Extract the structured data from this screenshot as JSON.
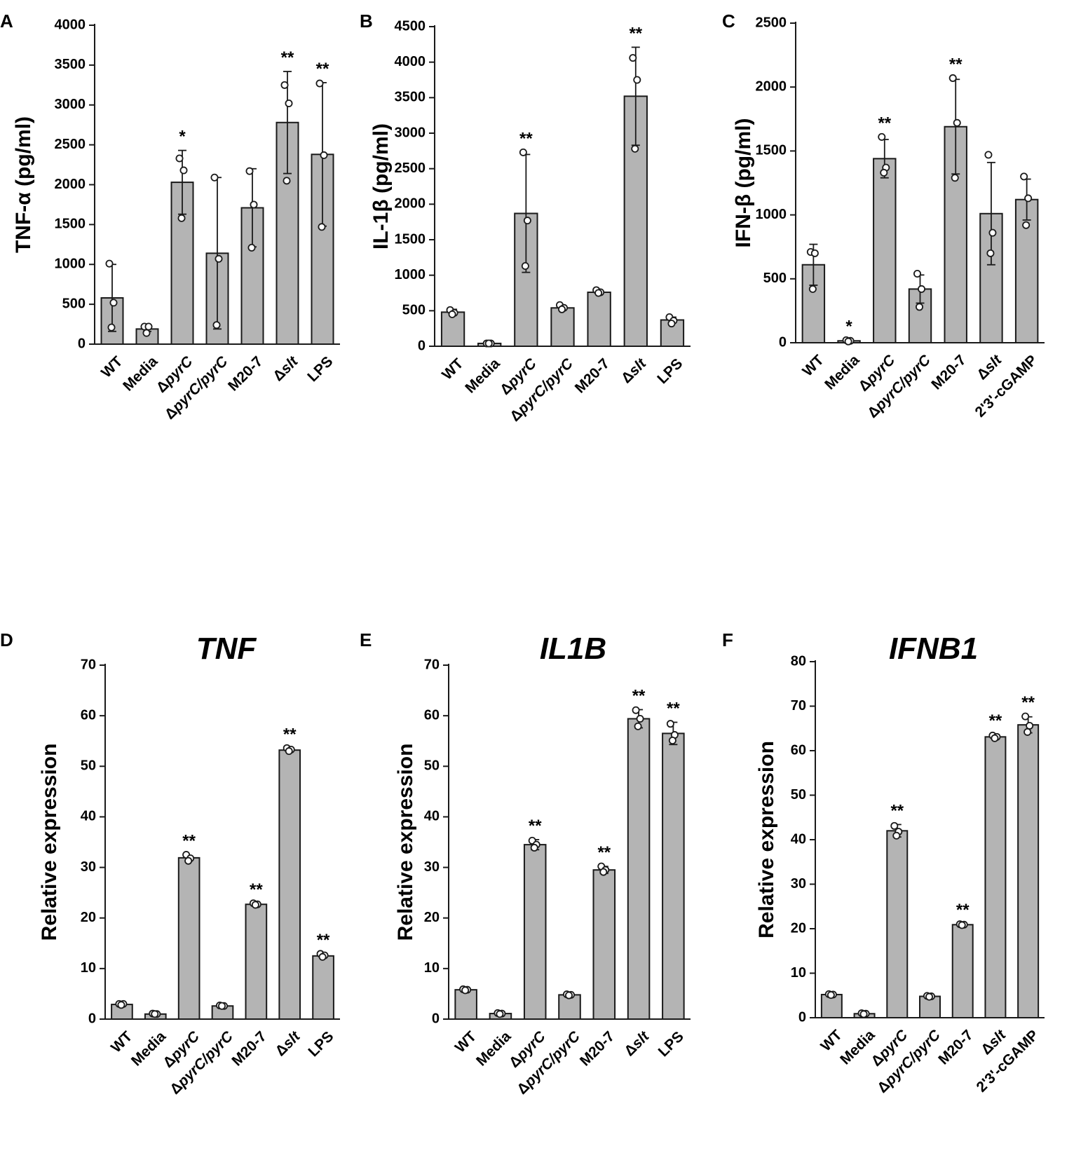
{
  "colors": {
    "bar": "#b4b4b4",
    "stroke": "#1a1a1a",
    "point_fill": "#ffffff"
  },
  "chart_data": [
    {
      "panel": "A",
      "type": "bar",
      "title": "",
      "ylabel": "TNF-α (pg/ml)",
      "ylim": [
        0,
        4000
      ],
      "yticks": [
        0,
        500,
        1000,
        1500,
        2000,
        2500,
        3000,
        3500,
        4000
      ],
      "categories": [
        {
          "label": "WT"
        },
        {
          "label": "Media"
        },
        {
          "label": "pyrC",
          "prefix": "Δ",
          "italic": true
        },
        {
          "label": "pyrC/pyrC",
          "prefix": "Δ",
          "italic": true
        },
        {
          "label": "M20-7"
        },
        {
          "label": "slt",
          "prefix": "Δ",
          "italic": true
        },
        {
          "label": "LPS"
        }
      ],
      "values": [
        580,
        190,
        2030,
        1140,
        1710,
        2780,
        2380
      ],
      "errors": [
        420,
        30,
        400,
        950,
        490,
        640,
        900
      ],
      "points": [
        [
          1010,
          520,
          210
        ],
        [
          220,
          220,
          140
        ],
        [
          2330,
          2180,
          1580
        ],
        [
          2090,
          1070,
          240
        ],
        [
          2170,
          1750,
          1210
        ],
        [
          3250,
          3020,
          2050
        ],
        [
          3270,
          2370,
          1470
        ]
      ],
      "significance": [
        "",
        "",
        "*",
        "",
        "",
        "**",
        "**"
      ]
    },
    {
      "panel": "B",
      "type": "bar",
      "title": "",
      "ylabel": "IL-1β (pg/ml)",
      "ylim": [
        0,
        4500
      ],
      "yticks": [
        0,
        500,
        1000,
        1500,
        2000,
        2500,
        3000,
        3500,
        4000,
        4500
      ],
      "categories": [
        {
          "label": "WT"
        },
        {
          "label": "Media"
        },
        {
          "label": "pyrC",
          "prefix": "Δ",
          "italic": true
        },
        {
          "label": "pyrC/pyrC",
          "prefix": "Δ",
          "italic": true
        },
        {
          "label": "M20-7"
        },
        {
          "label": "slt",
          "prefix": "Δ",
          "italic": true
        },
        {
          "label": "LPS"
        }
      ],
      "values": [
        480,
        40,
        1870,
        540,
        760,
        3520,
        370
      ],
      "errors": [
        40,
        10,
        830,
        30,
        20,
        690,
        40
      ],
      "points": [
        [
          510,
          470,
          450
        ],
        [
          40,
          40,
          40
        ],
        [
          2730,
          1770,
          1130
        ],
        [
          580,
          540,
          520
        ],
        [
          790,
          760,
          750
        ],
        [
          4060,
          3750,
          2780
        ],
        [
          410,
          360,
          320
        ]
      ],
      "significance": [
        "",
        "",
        "**",
        "",
        "",
        "**",
        ""
      ]
    },
    {
      "panel": "C",
      "type": "bar",
      "title": "",
      "ylabel": "IFN-β (pg/ml)",
      "ylim": [
        0,
        2500
      ],
      "yticks": [
        0,
        500,
        1000,
        1500,
        2000,
        2500
      ],
      "categories": [
        {
          "label": "WT"
        },
        {
          "label": "Media"
        },
        {
          "label": "pyrC",
          "prefix": "Δ",
          "italic": true
        },
        {
          "label": "pyrC/pyrC",
          "prefix": "Δ",
          "italic": true
        },
        {
          "label": "M20-7"
        },
        {
          "label": "slt",
          "prefix": "Δ",
          "italic": true
        },
        {
          "label": "2'3'-cGAMP"
        }
      ],
      "values": [
        610,
        15,
        1440,
        420,
        1690,
        1010,
        1120
      ],
      "errors": [
        160,
        5,
        150,
        110,
        370,
        400,
        160
      ],
      "points": [
        [
          710,
          700,
          420
        ],
        [
          20,
          15,
          10
        ],
        [
          1610,
          1370,
          1330
        ],
        [
          540,
          420,
          280
        ],
        [
          2070,
          1720,
          1290
        ],
        [
          1470,
          860,
          700
        ],
        [
          1300,
          1130,
          920
        ]
      ],
      "significance": [
        "",
        "*",
        "**",
        "",
        "**",
        "",
        ""
      ]
    },
    {
      "panel": "D",
      "type": "bar",
      "title": "TNF",
      "ylabel": "Relative expression",
      "ylim": [
        0,
        70
      ],
      "yticks": [
        0,
        10,
        20,
        30,
        40,
        50,
        60,
        70
      ],
      "categories": [
        {
          "label": "WT"
        },
        {
          "label": "Media"
        },
        {
          "label": "pyrC",
          "prefix": "Δ",
          "italic": true
        },
        {
          "label": "pyrC/pyrC",
          "prefix": "Δ",
          "italic": true
        },
        {
          "label": "M20-7"
        },
        {
          "label": "slt",
          "prefix": "Δ",
          "italic": true
        },
        {
          "label": "LPS"
        }
      ],
      "values": [
        2.9,
        1.0,
        31.9,
        2.6,
        22.7,
        53.2,
        12.5
      ],
      "errors": [
        0,
        0,
        0,
        0,
        0,
        0,
        0
      ],
      "points": [
        [
          3.0,
          3.0,
          2.8
        ],
        [
          1.1,
          1.0,
          1.0
        ],
        [
          32.5,
          31.8,
          31.3
        ],
        [
          2.7,
          2.6,
          2.6
        ],
        [
          22.9,
          22.7,
          22.6
        ],
        [
          53.6,
          53.3,
          53.0
        ],
        [
          12.9,
          12.6,
          12.3
        ]
      ],
      "significance": [
        "",
        "",
        "**",
        "",
        "**",
        "**",
        "**"
      ]
    },
    {
      "panel": "E",
      "type": "bar",
      "title": "IL1B",
      "ylabel": "Relative expression",
      "ylim": [
        0,
        70
      ],
      "yticks": [
        0,
        10,
        20,
        30,
        40,
        50,
        60,
        70
      ],
      "categories": [
        {
          "label": "WT"
        },
        {
          "label": "Media"
        },
        {
          "label": "pyrC",
          "prefix": "Δ",
          "italic": true
        },
        {
          "label": "pyrC/pyrC",
          "prefix": "Δ",
          "italic": true
        },
        {
          "label": "M20-7"
        },
        {
          "label": "slt",
          "prefix": "Δ",
          "italic": true
        },
        {
          "label": "LPS"
        }
      ],
      "values": [
        5.8,
        1.1,
        34.5,
        4.8,
        29.5,
        59.4,
        56.5
      ],
      "errors": [
        0.3,
        0.2,
        1.0,
        0.2,
        0.7,
        1.8,
        2.2
      ],
      "points": [
        [
          5.9,
          5.8,
          5.7
        ],
        [
          1.2,
          1.1,
          1.0
        ],
        [
          35.3,
          34.5,
          33.9
        ],
        [
          4.9,
          4.8,
          4.7
        ],
        [
          30.2,
          29.5,
          29.1
        ],
        [
          61.1,
          59.4,
          57.9
        ],
        [
          58.4,
          56.2,
          55.1
        ]
      ],
      "significance": [
        "",
        "",
        "**",
        "",
        "**",
        "**",
        "**"
      ]
    },
    {
      "panel": "F",
      "type": "bar",
      "title": "IFNB1",
      "ylabel": "Relative expression",
      "ylim": [
        0,
        80
      ],
      "yticks": [
        0,
        10,
        20,
        30,
        40,
        50,
        60,
        70,
        80
      ],
      "categories": [
        {
          "label": "WT"
        },
        {
          "label": "Media"
        },
        {
          "label": "pyrC",
          "prefix": "Δ",
          "italic": true
        },
        {
          "label": "pyrC/pyrC",
          "prefix": "Δ",
          "italic": true
        },
        {
          "label": "M20-7"
        },
        {
          "label": "slt",
          "prefix": "Δ",
          "italic": true
        },
        {
          "label": "2'3'-cGAMP"
        }
      ],
      "values": [
        5.2,
        0.9,
        42.0,
        4.8,
        20.9,
        63.1,
        65.8
      ],
      "errors": [
        0.2,
        0.2,
        1.4,
        0.2,
        0.2,
        0.5,
        1.8
      ],
      "points": [
        [
          5.3,
          5.2,
          5.1
        ],
        [
          1.0,
          0.9,
          0.8
        ],
        [
          43.1,
          41.8,
          40.9
        ],
        [
          4.9,
          4.8,
          4.7
        ],
        [
          21.0,
          20.9,
          20.8
        ],
        [
          63.4,
          63.1,
          62.8
        ],
        [
          67.7,
          65.6,
          64.2
        ]
      ],
      "significance": [
        "",
        "",
        "**",
        "",
        "**",
        "**",
        "**"
      ]
    }
  ]
}
